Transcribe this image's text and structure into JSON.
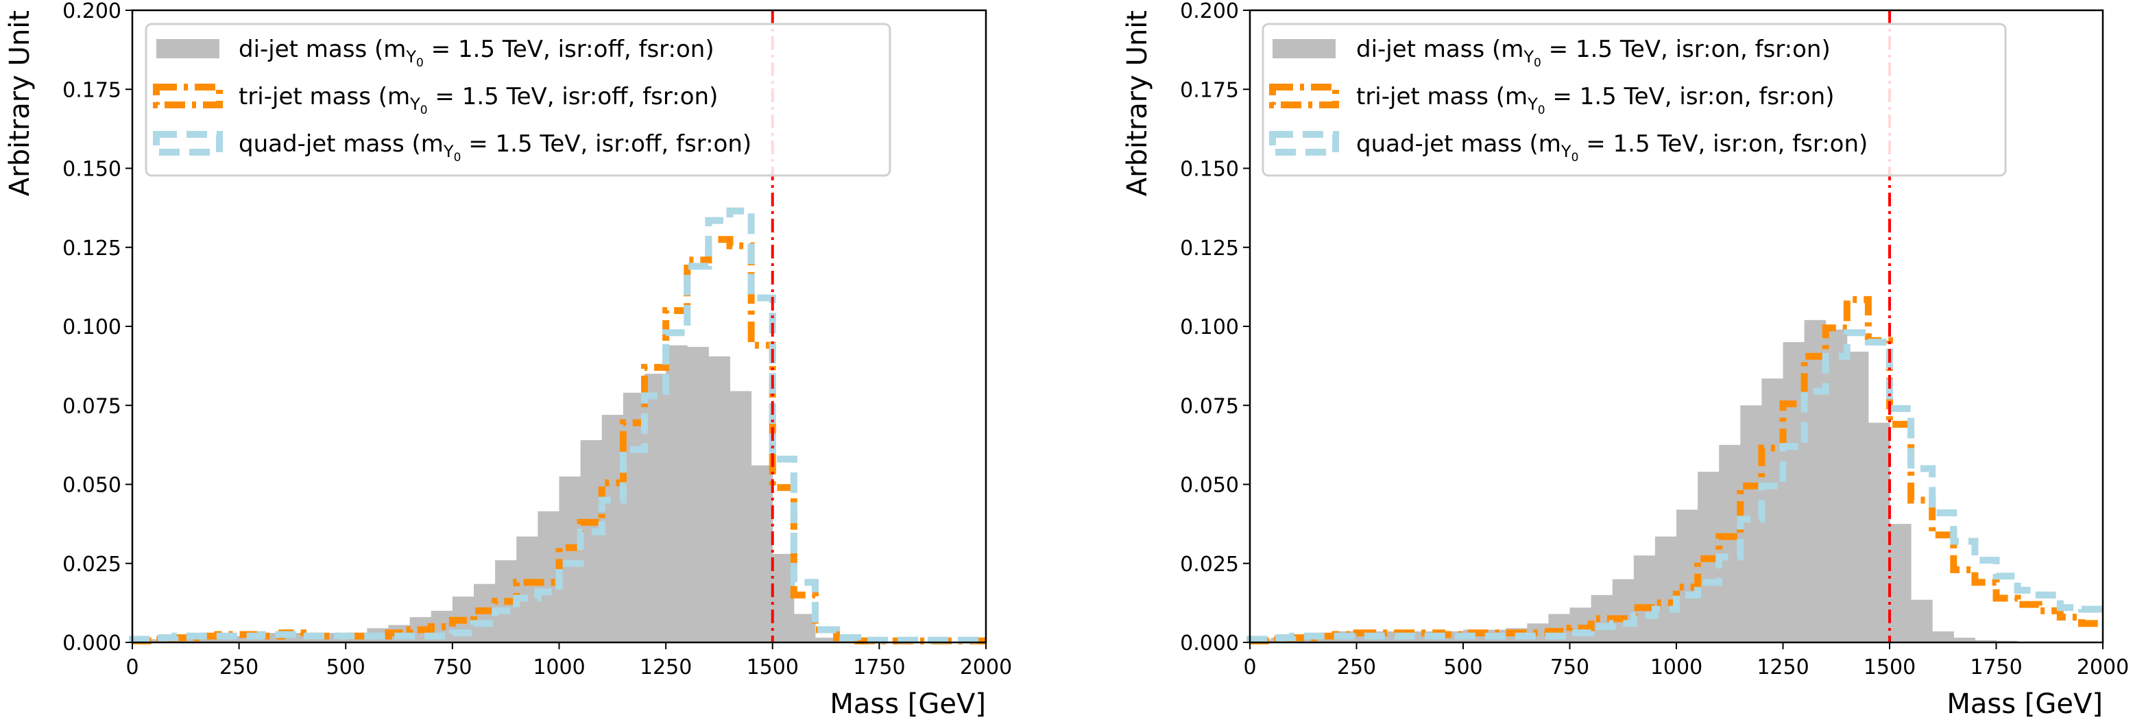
{
  "colors": {
    "di": "#bebebe",
    "tri": "#ff8c00",
    "quad": "#add8e6",
    "ref": "#ff0000"
  },
  "chart_data": [
    {
      "type": "histogram",
      "xlabel": "Mass [GeV]",
      "ylabel": "Arbitrary Unit",
      "xlim": [
        0,
        2000
      ],
      "ylim": [
        0,
        0.2
      ],
      "xticks": [
        "0",
        "250",
        "500",
        "750",
        "1000",
        "1250",
        "1500",
        "1750",
        "2000"
      ],
      "yticks": [
        "0.000",
        "0.025",
        "0.050",
        "0.075",
        "0.100",
        "0.125",
        "0.150",
        "0.175",
        "0.200"
      ],
      "bin_edges_start": 0,
      "bin_width": 50,
      "vline_x": 1500,
      "legend": "top-left",
      "series": [
        {
          "key": "di",
          "style": "filled",
          "label": {
            "pre": "di-jet mass (m",
            "sub": "Y",
            "subsub": "0",
            "post": " = 1.5 TeV, isr:off, fsr:on)"
          },
          "values": [
            0.001,
            0.001,
            0.001,
            0.0015,
            0.002,
            0.002,
            0.003,
            0.003,
            0.003,
            0.003,
            0.003,
            0.0045,
            0.0055,
            0.008,
            0.01,
            0.0145,
            0.0185,
            0.026,
            0.0335,
            0.0415,
            0.0525,
            0.064,
            0.072,
            0.079,
            0.085,
            0.094,
            0.0935,
            0.0905,
            0.0795,
            0.056,
            0.028,
            0.009,
            0.0015,
            0.0005,
            0.0002,
            0.0002,
            0.0002,
            0.0002,
            0.0002,
            0.0002
          ]
        },
        {
          "key": "tri",
          "style": "dashdot",
          "label": {
            "pre": "tri-jet mass (m",
            "sub": "Y",
            "subsub": "0",
            "post": " = 1.5 TeV, isr:off, fsr:on)"
          },
          "values": [
            0.0005,
            0.001,
            0.0015,
            0.002,
            0.0025,
            0.0025,
            0.002,
            0.003,
            0.002,
            0.002,
            0.002,
            0.002,
            0.003,
            0.004,
            0.005,
            0.007,
            0.01,
            0.013,
            0.019,
            0.019,
            0.03,
            0.038,
            0.0505,
            0.0695,
            0.087,
            0.105,
            0.121,
            0.1275,
            0.1255,
            0.094,
            0.049,
            0.015,
            0.004,
            0.0015,
            0.0005,
            0.0005,
            0.0005,
            0.0005,
            0.0005,
            0.0005
          ]
        },
        {
          "key": "quad",
          "style": "dashed",
          "label": {
            "pre": "quad-jet mass (m",
            "sub": "Y",
            "subsub": "0",
            "post": " = 1.5 TeV, isr:off, fsr:on)"
          },
          "values": [
            0.001,
            0.0015,
            0.002,
            0.002,
            0.002,
            0.002,
            0.0025,
            0.0025,
            0.002,
            0.002,
            0.002,
            0.002,
            0.002,
            0.002,
            0.002,
            0.003,
            0.006,
            0.01,
            0.014,
            0.016,
            0.025,
            0.035,
            0.045,
            0.061,
            0.078,
            0.098,
            0.119,
            0.1335,
            0.1365,
            0.109,
            0.058,
            0.019,
            0.004,
            0.0015,
            0.0007,
            0.0007,
            0.0007,
            0.0007,
            0.0007,
            0.0007
          ]
        }
      ]
    },
    {
      "type": "histogram",
      "xlabel": "Mass [GeV]",
      "ylabel": "Arbitrary Unit",
      "xlim": [
        0,
        2000
      ],
      "ylim": [
        0,
        0.2
      ],
      "xticks": [
        "0",
        "250",
        "500",
        "750",
        "1000",
        "1250",
        "1500",
        "1750",
        "2000"
      ],
      "yticks": [
        "0.000",
        "0.025",
        "0.050",
        "0.075",
        "0.100",
        "0.125",
        "0.150",
        "0.175",
        "0.200"
      ],
      "bin_edges_start": 0,
      "bin_width": 50,
      "vline_x": 1500,
      "legend": "top-left",
      "series": [
        {
          "key": "di",
          "style": "filled",
          "label": {
            "pre": "di-jet mass (m",
            "sub": "Y",
            "subsub": "0",
            "post": " = 1.5 TeV, isr:on, fsr:on)"
          },
          "values": [
            0.001,
            0.0015,
            0.002,
            0.003,
            0.0035,
            0.0035,
            0.0035,
            0.0035,
            0.0035,
            0.0035,
            0.004,
            0.004,
            0.0045,
            0.006,
            0.009,
            0.011,
            0.015,
            0.02,
            0.0275,
            0.0335,
            0.042,
            0.054,
            0.0625,
            0.075,
            0.0835,
            0.095,
            0.102,
            0.099,
            0.092,
            0.0695,
            0.0375,
            0.0135,
            0.0035,
            0.0015,
            0.0007,
            0.0005,
            0.0002,
            0.0002,
            0.0002,
            0.0002
          ]
        },
        {
          "key": "tri",
          "style": "dashdot",
          "label": {
            "pre": "tri-jet mass (m",
            "sub": "Y",
            "subsub": "0",
            "post": " = 1.5 TeV, isr:on, fsr:on)"
          },
          "values": [
            0.0005,
            0.001,
            0.0015,
            0.002,
            0.0025,
            0.003,
            0.003,
            0.003,
            0.003,
            0.0025,
            0.003,
            0.003,
            0.003,
            0.003,
            0.0035,
            0.0045,
            0.0075,
            0.0075,
            0.011,
            0.0125,
            0.0175,
            0.0265,
            0.0335,
            0.0495,
            0.0615,
            0.0755,
            0.0905,
            0.0995,
            0.1085,
            0.0955,
            0.069,
            0.045,
            0.034,
            0.023,
            0.019,
            0.014,
            0.012,
            0.01,
            0.008,
            0.006
          ]
        },
        {
          "key": "quad",
          "style": "dashed",
          "label": {
            "pre": "quad-jet mass (m",
            "sub": "Y",
            "subsub": "0",
            "post": " = 1.5 TeV, isr:on, fsr:on)"
          },
          "values": [
            0.001,
            0.0015,
            0.002,
            0.002,
            0.002,
            0.002,
            0.002,
            0.002,
            0.002,
            0.002,
            0.002,
            0.002,
            0.002,
            0.002,
            0.002,
            0.003,
            0.005,
            0.006,
            0.0085,
            0.0105,
            0.015,
            0.019,
            0.027,
            0.039,
            0.0495,
            0.062,
            0.0795,
            0.0905,
            0.098,
            0.095,
            0.074,
            0.055,
            0.041,
            0.032,
            0.026,
            0.021,
            0.0165,
            0.015,
            0.011,
            0.0105
          ]
        }
      ]
    }
  ]
}
